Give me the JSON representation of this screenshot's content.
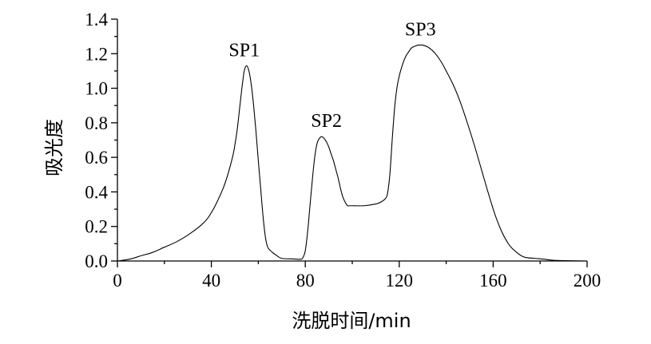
{
  "chart_data": {
    "type": "line",
    "title": "",
    "xlabel": "洗脱时间/min",
    "ylabel": "吸光度",
    "xlim": [
      0,
      200
    ],
    "ylim": [
      0,
      1.4
    ],
    "xticks": [
      "0",
      "40",
      "80",
      "120",
      "160",
      "200"
    ],
    "yticks": [
      "0.0",
      "0.2",
      "0.4",
      "0.6",
      "0.8",
      "1.0",
      "1.2",
      "1.4"
    ],
    "grid": false,
    "legend": "none",
    "annotations": [
      {
        "text": "SP1",
        "x": 54,
        "y": 1.13
      },
      {
        "text": "SP2",
        "x": 89,
        "y": 0.72
      },
      {
        "text": "SP3",
        "x": 129,
        "y": 1.25
      }
    ],
    "series": [
      {
        "x": [
          0,
          5,
          10,
          15,
          20,
          25,
          30,
          35,
          38,
          40,
          42,
          45,
          47,
          49,
          50,
          51,
          52,
          53,
          54,
          55,
          56,
          57,
          58,
          59,
          60,
          61,
          62,
          63,
          64,
          66,
          68,
          70,
          75,
          78,
          79,
          80,
          81,
          82,
          83,
          84,
          85,
          86,
          87,
          88,
          89,
          90,
          91,
          92,
          93,
          94,
          95,
          96,
          97,
          98,
          99,
          100,
          105,
          110,
          112,
          114,
          115,
          116,
          117,
          118,
          119,
          120,
          121,
          122,
          123,
          124,
          125,
          126,
          127,
          128,
          129,
          130,
          132,
          134,
          136,
          138,
          140,
          143,
          146,
          149,
          152,
          155,
          158,
          161,
          164,
          167,
          170,
          172,
          174,
          178,
          182,
          185,
          190,
          200
        ],
        "y": [
          0.0,
          0.01,
          0.03,
          0.05,
          0.08,
          0.11,
          0.15,
          0.2,
          0.24,
          0.28,
          0.33,
          0.42,
          0.5,
          0.6,
          0.67,
          0.76,
          0.88,
          1.0,
          1.1,
          1.13,
          1.1,
          1.02,
          0.9,
          0.75,
          0.58,
          0.42,
          0.26,
          0.14,
          0.08,
          0.05,
          0.03,
          0.015,
          0.012,
          0.01,
          0.02,
          0.06,
          0.17,
          0.32,
          0.47,
          0.6,
          0.68,
          0.71,
          0.72,
          0.71,
          0.69,
          0.66,
          0.62,
          0.58,
          0.53,
          0.48,
          0.42,
          0.37,
          0.34,
          0.32,
          0.32,
          0.32,
          0.32,
          0.33,
          0.34,
          0.36,
          0.39,
          0.5,
          0.7,
          0.88,
          1.0,
          1.07,
          1.12,
          1.16,
          1.19,
          1.21,
          1.23,
          1.24,
          1.245,
          1.25,
          1.25,
          1.25,
          1.24,
          1.22,
          1.19,
          1.15,
          1.1,
          1.02,
          0.92,
          0.8,
          0.67,
          0.53,
          0.39,
          0.26,
          0.16,
          0.09,
          0.05,
          0.03,
          0.02,
          0.015,
          0.01,
          0.005,
          0.002,
          0.0
        ]
      }
    ]
  }
}
